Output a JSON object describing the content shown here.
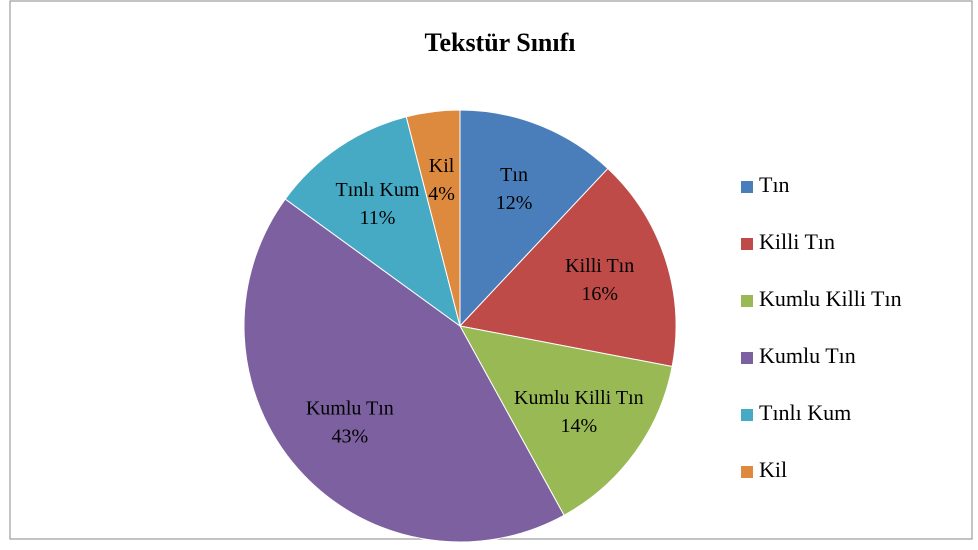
{
  "chart_data": {
    "type": "pie",
    "title": "Tekstür Sınıfı",
    "categories": [
      "Tın",
      "Killi Tın",
      "Kumlu Killi Tın",
      "Kumlu Tın",
      "Tınlı Kum",
      "Kil"
    ],
    "values": [
      12,
      16,
      14,
      43,
      11,
      4
    ],
    "value_labels": [
      "12%",
      "16%",
      "14%",
      "43%",
      "11%",
      "4%"
    ],
    "colors": [
      "#4a7ebb",
      "#be4b48",
      "#98b954",
      "#7d60a0",
      "#46aac5",
      "#dd8a3f"
    ],
    "legend": "right"
  }
}
